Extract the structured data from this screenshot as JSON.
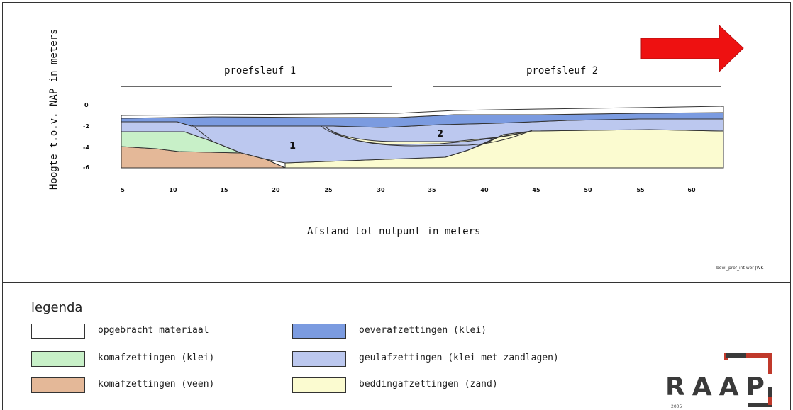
{
  "diagram": {
    "y_axis_label": "Hoogte t.o.v. NAP in meters",
    "x_axis_label": "Afstand tot nulpunt in meters",
    "y_ticks": [
      "0",
      "-2",
      "-4",
      "-6"
    ],
    "x_ticks": [
      "5",
      "10",
      "15",
      "20",
      "25",
      "30",
      "35",
      "40",
      "45",
      "50",
      "55",
      "60"
    ],
    "trench_1": "proefsleuf 1",
    "trench_2": "proefsleuf 2",
    "channel_1_label": "1",
    "channel_2_label": "2",
    "reference": "bowi_prof_int.wor   JWK",
    "arrow_icon": "arrow-right-icon",
    "arrow_color": "#ee1111"
  },
  "legend": {
    "title": "legenda",
    "items": [
      {
        "label": "opgebracht materiaal",
        "color": "#ffffff"
      },
      {
        "label": "komafzettingen (klei)",
        "color": "#c8f0c8"
      },
      {
        "label": "komafzettingen (veen)",
        "color": "#e4b898"
      },
      {
        "label": "oeverafzettingen (klei)",
        "color": "#7b9be0"
      },
      {
        "label": "geulafzettingen (klei met zandlagen)",
        "color": "#bcc8ef"
      },
      {
        "label": "beddingafzettingen (zand)",
        "color": "#fbfbd0"
      }
    ]
  },
  "logo": {
    "text": "RAAP",
    "year": "2005",
    "accent": "#c0392b"
  }
}
